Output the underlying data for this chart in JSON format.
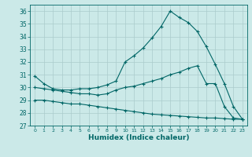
{
  "bg_color": "#cbe9e8",
  "grid_color": "#aacccc",
  "line_color": "#006666",
  "xlabel": "Humidex (Indice chaleur)",
  "ylim": [
    27,
    36.5
  ],
  "yticks": [
    27,
    28,
    29,
    30,
    31,
    32,
    33,
    34,
    35,
    36
  ],
  "xlim": [
    -0.5,
    23.5
  ],
  "xticks": [
    0,
    1,
    2,
    3,
    4,
    5,
    6,
    7,
    8,
    9,
    10,
    11,
    12,
    13,
    14,
    15,
    16,
    17,
    18,
    19,
    20,
    21,
    22,
    23
  ],
  "line1_x": [
    0,
    1,
    2,
    3,
    4,
    5,
    6,
    7,
    8,
    9,
    10,
    11,
    12,
    13,
    14,
    15,
    16,
    17,
    18,
    19,
    20,
    21,
    22,
    23
  ],
  "line1_y": [
    30.9,
    30.3,
    29.9,
    29.8,
    29.8,
    29.9,
    29.9,
    30.0,
    30.2,
    30.5,
    32.0,
    32.5,
    33.1,
    33.9,
    34.8,
    36.0,
    35.5,
    35.1,
    34.4,
    33.2,
    31.8,
    30.3,
    28.5,
    27.5
  ],
  "line2_x": [
    0,
    1,
    2,
    3,
    4,
    5,
    6,
    7,
    8,
    9,
    10,
    11,
    12,
    13,
    14,
    15,
    16,
    17,
    18,
    19,
    20,
    21,
    22,
    23
  ],
  "line2_y": [
    30.0,
    29.9,
    29.8,
    29.7,
    29.6,
    29.5,
    29.5,
    29.4,
    29.5,
    29.8,
    30.0,
    30.1,
    30.3,
    30.5,
    30.7,
    31.0,
    31.2,
    31.5,
    31.7,
    30.3,
    30.3,
    28.5,
    27.6,
    27.5
  ],
  "line3_x": [
    0,
    1,
    2,
    3,
    4,
    5,
    6,
    7,
    8,
    9,
    10,
    11,
    12,
    13,
    14,
    15,
    16,
    17,
    18,
    19,
    20,
    21,
    22,
    23
  ],
  "line3_y": [
    29.0,
    29.0,
    28.9,
    28.8,
    28.7,
    28.7,
    28.6,
    28.5,
    28.4,
    28.3,
    28.2,
    28.1,
    28.0,
    27.9,
    27.85,
    27.8,
    27.75,
    27.7,
    27.65,
    27.6,
    27.6,
    27.55,
    27.5,
    27.5
  ]
}
